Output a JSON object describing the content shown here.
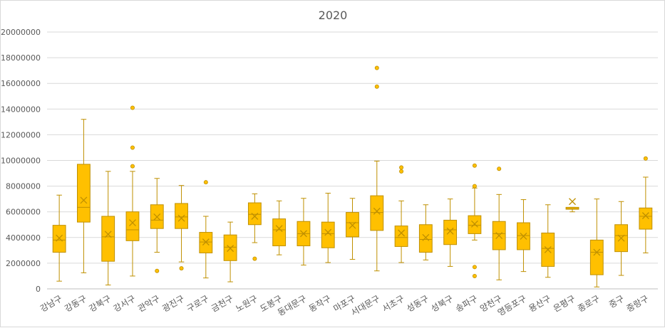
{
  "chart_data": {
    "type": "box",
    "title": "2020",
    "xlabel": "",
    "ylabel": "",
    "ylim": [
      0,
      20000000
    ],
    "y_ticks": [
      "0",
      "2000000",
      "4000000",
      "6000000",
      "8000000",
      "10000000",
      "12000000",
      "14000000",
      "16000000",
      "18000000",
      "20000000"
    ],
    "grid": true,
    "legend": "none",
    "colors": {
      "box_fill": "#ffc000",
      "box_stroke": "#bf9000",
      "whisker": "#bf9000",
      "grid": "#d9d9d9",
      "axis": "#bfbfbf",
      "text": "#595959"
    },
    "categories": [
      "강남구",
      "강동구",
      "강북구",
      "강서구",
      "관악구",
      "광진구",
      "구로구",
      "금천구",
      "노원구",
      "도봉구",
      "동대문구",
      "동작구",
      "마포구",
      "서대문구",
      "서초구",
      "성동구",
      "성북구",
      "송파구",
      "양천구",
      "영등포구",
      "용산구",
      "은평구",
      "종로구",
      "중구",
      "중랑구"
    ],
    "boxes": [
      {
        "min": 600000,
        "q1": 2850000,
        "median": 3800000,
        "q3": 4950000,
        "max": 7300000,
        "mean": 3950000,
        "outliers": []
      },
      {
        "min": 1250000,
        "q1": 5200000,
        "median": 6350000,
        "q3": 9700000,
        "max": 13200000,
        "mean": 6900000,
        "outliers": []
      },
      {
        "min": 300000,
        "q1": 2150000,
        "median": 4050000,
        "q3": 5650000,
        "max": 9150000,
        "mean": 4250000,
        "outliers": []
      },
      {
        "min": 1000000,
        "q1": 3750000,
        "median": 4600000,
        "q3": 6000000,
        "max": 9150000,
        "mean": 5150000,
        "outliers": [
          9550000,
          11000000,
          14100000
        ]
      },
      {
        "min": 2850000,
        "q1": 4700000,
        "median": 5350000,
        "q3": 6550000,
        "max": 8600000,
        "mean": 5600000,
        "outliers": [
          1400000
        ]
      },
      {
        "min": 2100000,
        "q1": 4700000,
        "median": 5600000,
        "q3": 6650000,
        "max": 8050000,
        "mean": 5500000,
        "outliers": [
          1600000
        ]
      },
      {
        "min": 850000,
        "q1": 2800000,
        "median": 3650000,
        "q3": 4400000,
        "max": 5650000,
        "mean": 3650000,
        "outliers": [
          8300000
        ]
      },
      {
        "min": 550000,
        "q1": 2200000,
        "median": 3250000,
        "q3": 4200000,
        "max": 5200000,
        "mean": 3150000,
        "outliers": []
      },
      {
        "min": 3600000,
        "q1": 5000000,
        "median": 5800000,
        "q3": 6700000,
        "max": 7400000,
        "mean": 5650000,
        "outliers": [
          2350000
        ]
      },
      {
        "min": 2650000,
        "q1": 3350000,
        "median": 4600000,
        "q3": 5450000,
        "max": 6850000,
        "mean": 4700000,
        "outliers": []
      },
      {
        "min": 1850000,
        "q1": 3350000,
        "median": 4300000,
        "q3": 5250000,
        "max": 7050000,
        "mean": 4300000,
        "outliers": []
      },
      {
        "min": 2050000,
        "q1": 3200000,
        "median": 4300000,
        "q3": 5200000,
        "max": 7450000,
        "mean": 4400000,
        "outliers": []
      },
      {
        "min": 2300000,
        "q1": 4050000,
        "median": 5150000,
        "q3": 5950000,
        "max": 7050000,
        "mean": 4950000,
        "outliers": []
      },
      {
        "min": 1400000,
        "q1": 4550000,
        "median": 5950000,
        "q3": 7250000,
        "max": 9950000,
        "mean": 6050000,
        "outliers": [
          15750000,
          17200000
        ]
      },
      {
        "min": 2050000,
        "q1": 3300000,
        "median": 4000000,
        "q3": 4900000,
        "max": 6850000,
        "mean": 4350000,
        "outliers": [
          9150000,
          9450000
        ]
      },
      {
        "min": 2250000,
        "q1": 2850000,
        "median": 3850000,
        "q3": 5000000,
        "max": 6550000,
        "mean": 4000000,
        "outliers": []
      },
      {
        "min": 1750000,
        "q1": 3450000,
        "median": 4600000,
        "q3": 5350000,
        "max": 7000000,
        "mean": 4500000,
        "outliers": []
      },
      {
        "min": 3800000,
        "q1": 4300000,
        "median": 4950000,
        "q3": 5700000,
        "max": 7850000,
        "mean": 5050000,
        "outliers": [
          1000000,
          1700000,
          8000000,
          9600000
        ]
      },
      {
        "min": 700000,
        "q1": 3050000,
        "median": 4300000,
        "q3": 5250000,
        "max": 7350000,
        "mean": 4150000,
        "outliers": [
          9350000
        ]
      },
      {
        "min": 1350000,
        "q1": 3050000,
        "median": 4150000,
        "q3": 5150000,
        "max": 6950000,
        "mean": 4100000,
        "outliers": []
      },
      {
        "min": 900000,
        "q1": 1750000,
        "median": 3150000,
        "q3": 4350000,
        "max": 6550000,
        "mean": 3050000,
        "outliers": []
      },
      {
        "min": 6000000,
        "q1": 6200000,
        "median": 6250000,
        "q3": 6350000,
        "max": 6350000,
        "mean": 6800000,
        "outliers": []
      },
      {
        "min": 150000,
        "q1": 1100000,
        "median": 2850000,
        "q3": 3800000,
        "max": 7000000,
        "mean": 2850000,
        "outliers": []
      },
      {
        "min": 1050000,
        "q1": 2900000,
        "median": 4150000,
        "q3": 5000000,
        "max": 6800000,
        "mean": 3950000,
        "outliers": []
      },
      {
        "min": 2800000,
        "q1": 4650000,
        "median": 5650000,
        "q3": 6300000,
        "max": 8700000,
        "mean": 5700000,
        "outliers": [
          10150000
        ]
      }
    ]
  }
}
